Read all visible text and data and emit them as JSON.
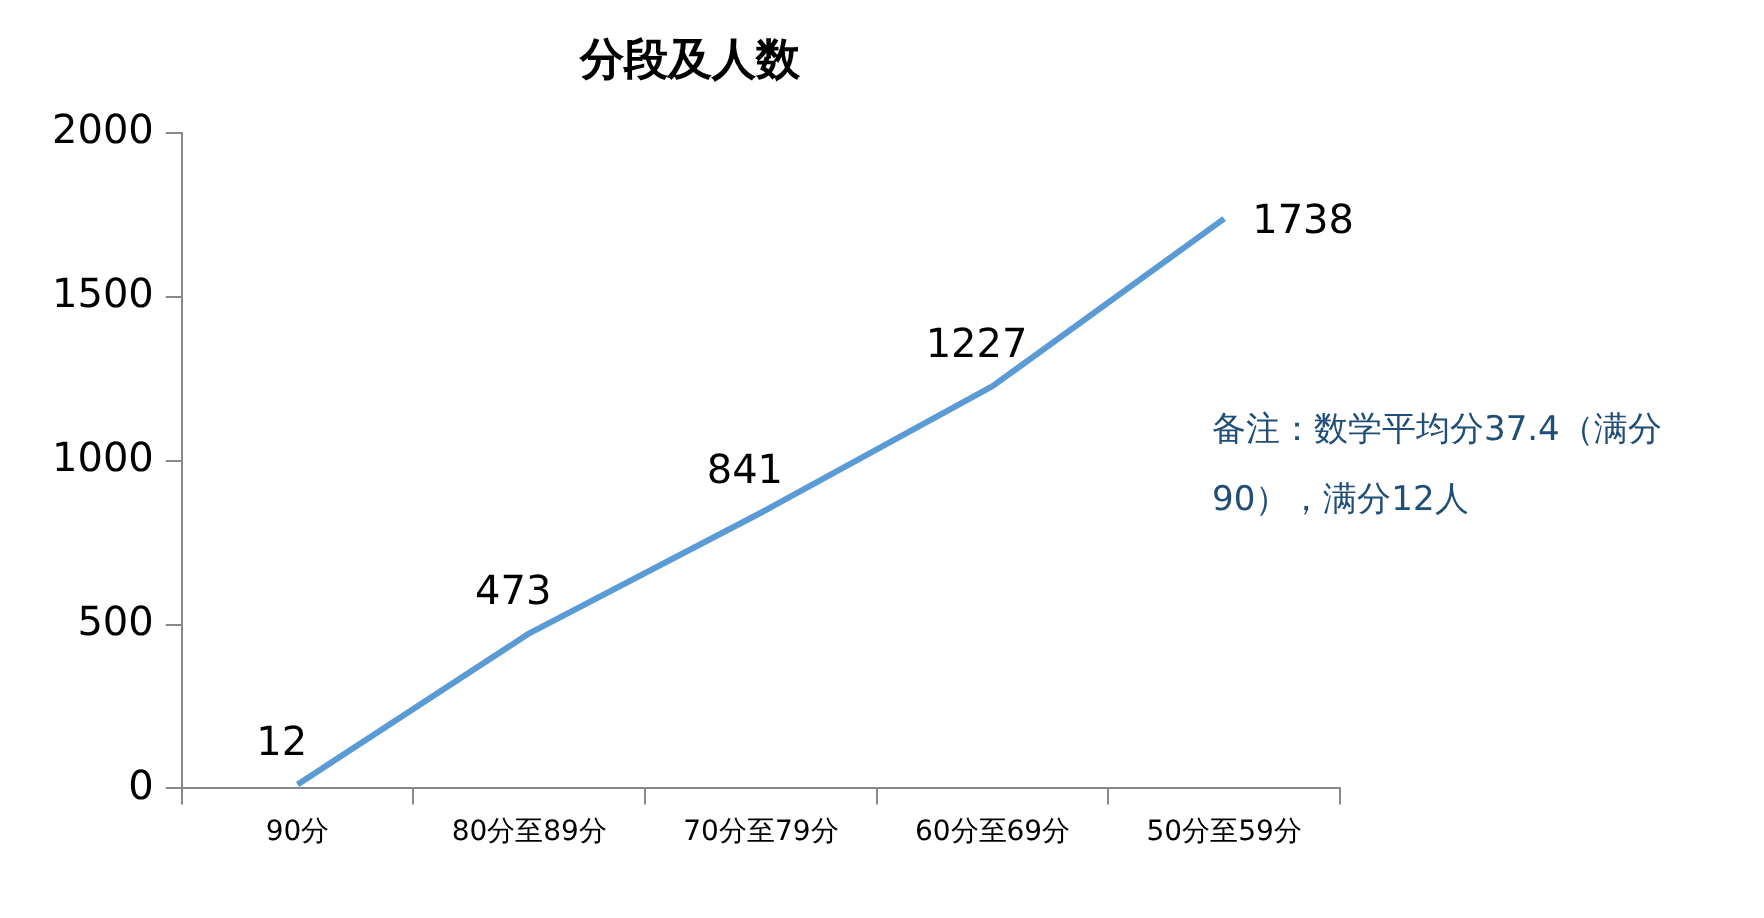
{
  "chart_data": {
    "type": "line",
    "title": "分段及人数",
    "categories": [
      "90分",
      "80分至89分",
      "70分至79分",
      "60分至69分",
      "50分至59分"
    ],
    "series": [
      {
        "color": "#5b9bd5",
        "values": [
          12,
          473,
          841,
          1227,
          1738
        ]
      }
    ],
    "ylim": [
      0,
      2000
    ],
    "yticks": [
      0,
      500,
      1000,
      1500,
      2000
    ],
    "data_labels": true,
    "marker": "none",
    "legend": false,
    "annotations": [
      "备注：数学平均分37.4（满分90），满分12人"
    ]
  }
}
